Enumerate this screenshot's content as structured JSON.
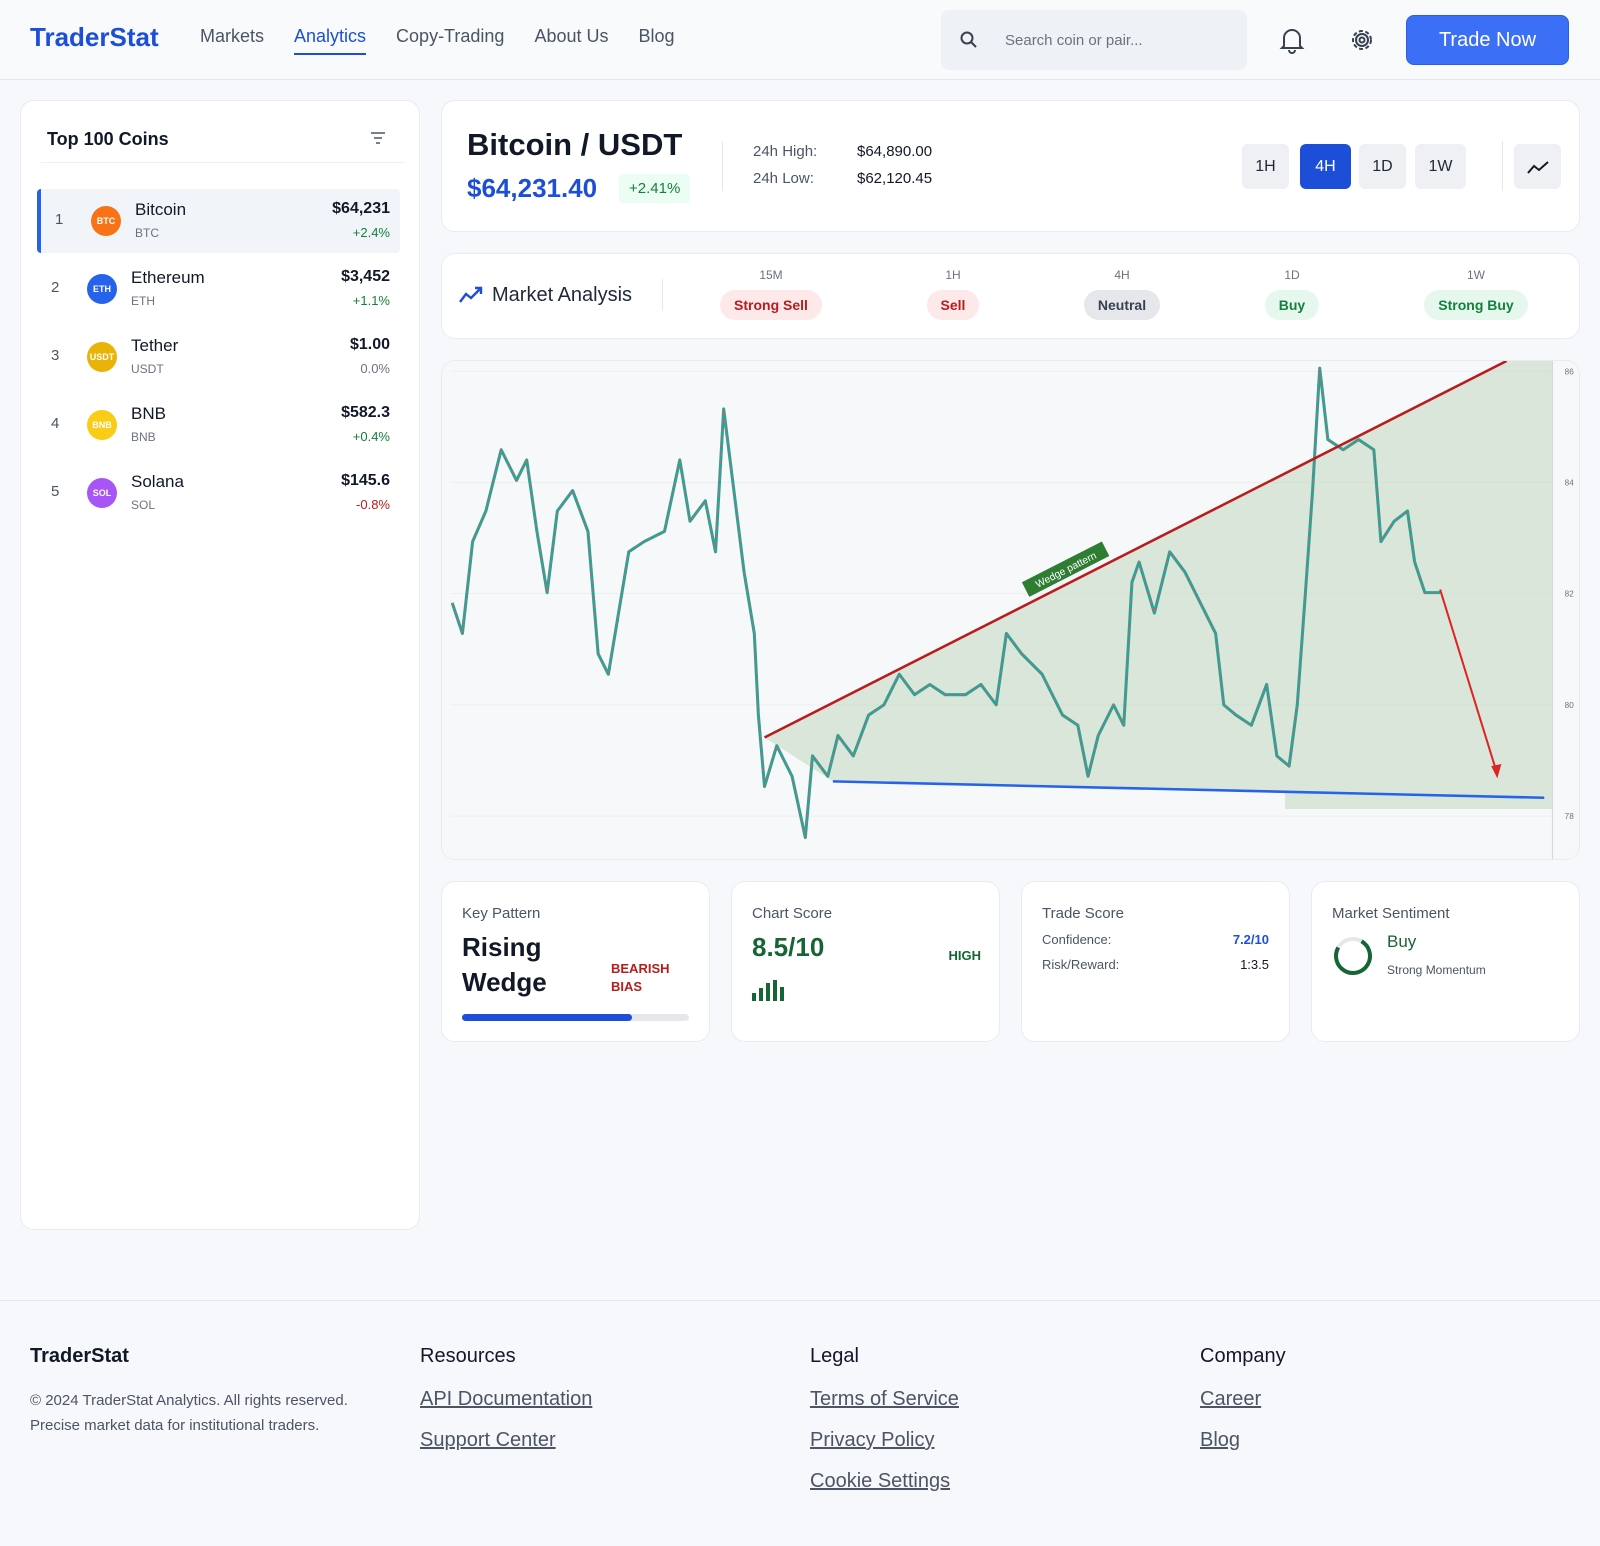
{
  "header": {
    "brand": "TraderStat",
    "nav": [
      "Markets",
      "Analytics",
      "Copy-Trading",
      "About Us",
      "Blog"
    ],
    "active_nav": 1,
    "search_placeholder": "Search coin or pair...",
    "button": "Trade Now"
  },
  "sidebar": {
    "title": "Top 100 Coins",
    "selected": 0,
    "coins": [
      {
        "rank": 1,
        "icon": "BTC",
        "color": "#f97316",
        "name": "Bitcoin",
        "symbol": "BTC",
        "price": "$64,231",
        "change": "+2.4%"
      },
      {
        "rank": 2,
        "icon": "ETH",
        "color": "#2563eb",
        "name": "Ethereum",
        "symbol": "ETH",
        "price": "$3,452",
        "change": "+1.1%"
      },
      {
        "rank": 3,
        "icon": "USDT",
        "color": "#eab308",
        "name": "Tether",
        "symbol": "USDT",
        "price": "$1.00",
        "change": "0.0%"
      },
      {
        "rank": 4,
        "icon": "BNB",
        "color": "#facc15",
        "name": "BNB",
        "symbol": "BNB",
        "price": "$582.3",
        "change": "+0.4%"
      },
      {
        "rank": 5,
        "icon": "SOL",
        "color": "#a855f7",
        "name": "Solana",
        "symbol": "SOL",
        "price": "$145.6",
        "change": "-0.8%"
      }
    ]
  },
  "pair": {
    "name": "Bitcoin / USDT",
    "price": "$64,231.40",
    "change": "+2.41%",
    "high_label": "24h High:",
    "high": "$64,890.00",
    "low_label": "24h Low:",
    "low": "$62,120.45",
    "timeframes": [
      "1H",
      "4H",
      "1D",
      "1W"
    ],
    "active_timeframe": 1
  },
  "analysis": {
    "title": "Market Analysis",
    "signals": [
      {
        "timeframe": "15M",
        "signal": "Strong Sell"
      },
      {
        "timeframe": "1H",
        "signal": "Sell"
      },
      {
        "timeframe": "4H",
        "signal": "Neutral"
      },
      {
        "timeframe": "1D",
        "signal": "Buy"
      },
      {
        "timeframe": "1W",
        "signal": "Strong Buy"
      }
    ]
  },
  "chart_image": {
    "annotation": "Wedge pattern",
    "axis_labels": [
      "86",
      "84",
      "82",
      "80",
      "78"
    ]
  },
  "cards": {
    "key_pattern": {
      "label": "Key Pattern",
      "value": "Rising Wedge",
      "bias": "BEARISH BIAS",
      "progress": 75
    },
    "chart_score": {
      "label": "Chart Score",
      "value": "8.5/10",
      "level": "HIGH"
    },
    "trade_score": {
      "label": "Trade Score",
      "confidence_label": "Confidence:",
      "confidence": "7.2/10",
      "rr_label": "Risk/Reward:",
      "rr": "1:3.5"
    },
    "sentiment": {
      "label": "Market Sentiment",
      "value": "Buy",
      "note": "Strong Momentum"
    }
  },
  "footer": {
    "brand": "TraderStat",
    "copyright": "© 2024 TraderStat Analytics. All rights reserved.",
    "tagline": "Precise market data for institutional traders.",
    "columns": [
      {
        "title": "Resources",
        "links": [
          "API Documentation",
          "Support Center"
        ]
      },
      {
        "title": "Legal",
        "links": [
          "Terms of Service",
          "Privacy Policy",
          "Cookie Settings"
        ]
      },
      {
        "title": "Company",
        "links": [
          "Career",
          "Blog"
        ]
      }
    ]
  }
}
